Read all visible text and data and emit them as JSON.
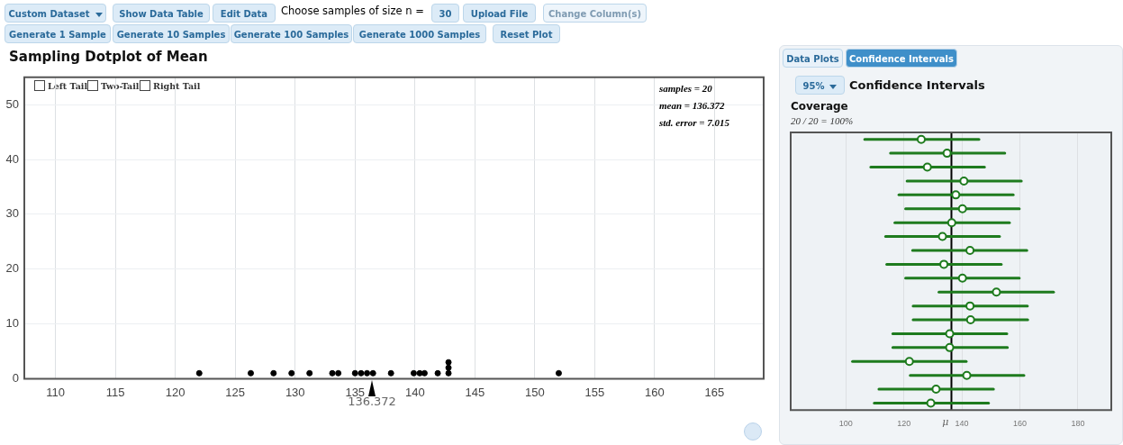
{
  "chart_data": [
    {
      "type": "other",
      "annotations": [
        "Custom Dataset",
        "Show Data Table",
        "Edit Data",
        "Choose samples of size n =",
        "30",
        "Upload File",
        "Change Column(s)",
        "Generate 1 Sample",
        "Generate 10 Samples",
        "Generate 100 Samples",
        "Generate 1000 Samples",
        "Reset Plot",
        "Left Tail",
        "Two-Tail",
        "Right Tail",
        "Data Plots",
        "Confidence Intervals",
        "95%"
      ]
    },
    {
      "type": "scatter",
      "title": "Sampling Dotplot of Mean",
      "x": [
        122.0,
        126.3,
        128.2,
        129.7,
        131.2,
        133.1,
        133.6,
        135.0,
        135.5,
        136.0,
        136.5,
        138.0,
        139.9,
        140.4,
        140.8,
        141.9,
        142.8,
        142.8,
        142.8,
        152.0
      ],
      "values": [
        1,
        1,
        1,
        1,
        1,
        1,
        1,
        1,
        1,
        1,
        1,
        1,
        1,
        1,
        1,
        1,
        1,
        2,
        3,
        1
      ],
      "color": "#000000",
      "marker": "circle",
      "xlim": [
        107.4,
        169.1
      ],
      "xticks": [
        110,
        115,
        120,
        125,
        130,
        135,
        140,
        145,
        150,
        155,
        160,
        165
      ],
      "ylim": [
        0,
        55
      ],
      "yticks": [
        0,
        10,
        20,
        30,
        40,
        50
      ],
      "grid": true,
      "legend": false,
      "annotations": [
        "136.372",
        "samples = 20",
        "mean = 136.372",
        "std. error = 7.015"
      ]
    },
    {
      "type": "scatter",
      "title": "Confidence Intervals",
      "subtitle": "Coverage",
      "orientation": "horizontal",
      "categories": [
        null,
        null,
        null,
        null,
        null,
        null,
        null,
        null,
        null,
        null,
        null,
        null,
        null,
        null,
        null,
        null,
        null,
        null,
        null,
        null
      ],
      "values": [
        126.0,
        134.9,
        128.1,
        140.7,
        137.9,
        140.2,
        136.5,
        133.3,
        142.8,
        133.8,
        140.2,
        151.9,
        142.8,
        143.0,
        135.8,
        135.8,
        121.9,
        141.7,
        131.1,
        129.3
      ],
      "errors": [
        [
          106.5,
          145.9
        ],
        [
          115.4,
          154.8
        ],
        [
          108.6,
          147.8
        ],
        [
          121.1,
          160.5
        ],
        [
          118.3,
          157.7
        ],
        [
          120.6,
          159.8
        ],
        [
          116.9,
          156.4
        ],
        [
          113.7,
          153.0
        ],
        [
          123.0,
          162.4
        ],
        [
          114.1,
          153.6
        ],
        [
          120.6,
          159.8
        ],
        [
          132.1,
          171.6
        ],
        [
          123.2,
          162.6
        ],
        [
          123.2,
          162.7
        ],
        [
          116.2,
          155.5
        ],
        [
          116.2,
          155.7
        ],
        [
          102.3,
          141.5
        ],
        [
          122.2,
          161.4
        ],
        [
          111.4,
          150.9
        ],
        [
          109.8,
          149.2
        ]
      ],
      "color": "#1e7b1e",
      "marker": "circle",
      "xlim": [
        81,
        191.5
      ],
      "xticks": [
        100,
        120,
        140,
        160,
        180
      ],
      "grid": "x",
      "legend": false,
      "tick_labels": "x",
      "ref_lines": [
        {
          "axis": "x",
          "value": 136.4,
          "label": "μ",
          "color": "#000000"
        }
      ],
      "annotations": [
        "20 / 20 = 100%"
      ]
    }
  ]
}
